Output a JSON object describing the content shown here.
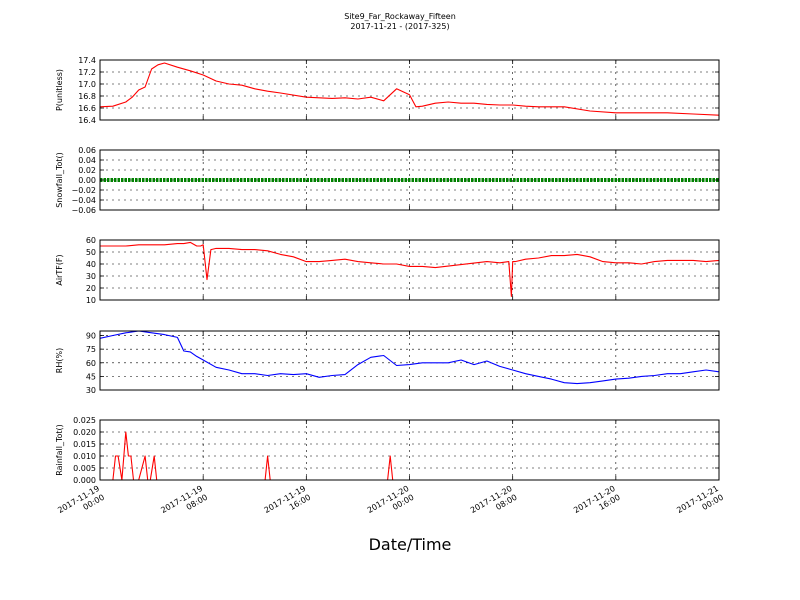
{
  "figure": {
    "title": "Site9_Far_Rockaway_Fifteen",
    "subtitle": "2017-11-21 - (2017-325)",
    "xlabel": "Date/Time"
  },
  "chart_data": [
    {
      "type": "line",
      "ylabel": "P(unitless)",
      "ylim": [
        16.4,
        17.4
      ],
      "yticks": [
        "17.4",
        "17.2",
        "17.0",
        "16.8",
        "16.6",
        "16.4"
      ],
      "ytick_values": [
        17.4,
        17.2,
        17.0,
        16.8,
        16.6,
        16.4
      ],
      "grid": true,
      "xlim": [
        0,
        48
      ],
      "x": [
        0,
        1,
        2,
        2.5,
        3,
        3.5,
        4,
        4.5,
        5,
        6,
        7,
        8,
        9,
        10,
        11,
        12,
        13,
        14,
        16,
        18,
        19,
        20,
        21,
        22,
        23,
        24,
        24.5,
        25,
        26,
        27,
        28,
        29,
        30,
        31,
        32,
        33,
        34,
        36,
        38,
        40,
        42,
        44,
        46,
        48
      ],
      "series": [
        {
          "color": "#ff0000",
          "values": [
            16.62,
            16.63,
            16.7,
            16.78,
            16.9,
            16.95,
            17.25,
            17.32,
            17.35,
            17.28,
            17.22,
            17.15,
            17.05,
            17.0,
            16.98,
            16.92,
            16.88,
            16.85,
            16.78,
            16.76,
            16.77,
            16.75,
            16.78,
            16.72,
            16.92,
            16.82,
            16.62,
            16.63,
            16.68,
            16.7,
            16.68,
            16.68,
            16.66,
            16.65,
            16.65,
            16.63,
            16.62,
            16.62,
            16.55,
            16.52,
            16.52,
            16.52,
            16.5,
            16.48
          ]
        }
      ]
    },
    {
      "type": "line",
      "ylabel": "Snowfall_Tot()",
      "ylim": [
        -0.06,
        0.06
      ],
      "yticks": [
        "0.06",
        "0.04",
        "0.02",
        "0.00",
        "−0.02",
        "−0.04",
        "−0.06"
      ],
      "ytick_values": [
        0.06,
        0.04,
        0.02,
        0.0,
        -0.02,
        -0.04,
        -0.06
      ],
      "grid": true,
      "xlim": [
        0,
        48
      ],
      "x": [
        0,
        48
      ],
      "series": [
        {
          "color": "#008000",
          "values": [
            0,
            0
          ]
        }
      ]
    },
    {
      "type": "line",
      "ylabel": "AirTF(F)",
      "ylim": [
        10,
        60
      ],
      "yticks": [
        "60",
        "50",
        "40",
        "30",
        "20",
        "10"
      ],
      "ytick_values": [
        60,
        50,
        40,
        30,
        20,
        10
      ],
      "grid": true,
      "xlim": [
        0,
        48
      ],
      "x": [
        0,
        1,
        2,
        3,
        4,
        5,
        6,
        6.5,
        7,
        7.5,
        7.8,
        8,
        8.3,
        8.6,
        9,
        10,
        11,
        12,
        13,
        14,
        15,
        16,
        17,
        18,
        19,
        20,
        21,
        22,
        23,
        24,
        25,
        26,
        30,
        31,
        31.7,
        31.9,
        32,
        32.2,
        33,
        34,
        35,
        36,
        37,
        38,
        39,
        40,
        41,
        42,
        43,
        44,
        45,
        46,
        47,
        48
      ],
      "series": [
        {
          "color": "#ff0000",
          "values": [
            55,
            55,
            55,
            56,
            56,
            56,
            57,
            57,
            58,
            55,
            55,
            56,
            27,
            52,
            53,
            53,
            52,
            52,
            51,
            48,
            46,
            42,
            42,
            43,
            44,
            42,
            41,
            40,
            40,
            38,
            38,
            37,
            42,
            41,
            42,
            13,
            42,
            42,
            44,
            45,
            47,
            47,
            48,
            46,
            42,
            41,
            41,
            40,
            42,
            43,
            43,
            43,
            42,
            43
          ]
        }
      ]
    },
    {
      "type": "line",
      "ylabel": "RH(%)",
      "ylim": [
        30,
        95
      ],
      "yticks": [
        "90",
        "75",
        "60",
        "45",
        "30"
      ],
      "ytick_values": [
        90,
        75,
        60,
        45,
        30
      ],
      "grid": true,
      "xlim": [
        0,
        48
      ],
      "x": [
        0,
        1,
        2,
        3,
        4,
        5,
        6,
        6.5,
        7,
        7.5,
        8,
        9,
        10,
        11,
        12,
        13,
        14,
        15,
        16,
        17,
        18,
        19,
        20,
        21,
        22,
        23,
        24,
        25,
        26,
        27,
        28,
        29,
        30,
        31,
        32,
        33,
        34,
        35,
        36,
        37,
        38,
        39,
        40,
        41,
        42,
        43,
        44,
        45,
        46,
        47,
        48
      ],
      "series": [
        {
          "color": "#0000ff",
          "values": [
            87,
            90,
            93,
            95,
            93,
            91,
            88,
            73,
            72,
            67,
            63,
            55,
            52,
            48,
            48,
            46,
            48,
            47,
            48,
            44,
            46,
            47,
            58,
            66,
            68,
            57,
            58,
            60,
            60,
            60,
            63,
            58,
            62,
            56,
            52,
            48,
            45,
            42,
            38,
            37,
            38,
            40,
            42,
            43,
            45,
            46,
            48,
            48,
            50,
            52,
            50
          ]
        }
      ]
    },
    {
      "type": "line",
      "ylabel": "Rainfall_Tot()",
      "ylim": [
        0,
        0.025
      ],
      "yticks": [
        "0.025",
        "0.020",
        "0.015",
        "0.010",
        "0.005",
        "0.000"
      ],
      "ytick_values": [
        0.025,
        0.02,
        0.015,
        0.01,
        0.005,
        0.0
      ],
      "grid": true,
      "xlim": [
        0,
        48
      ],
      "x": [
        0,
        1,
        1.2,
        1.4,
        1.7,
        2,
        2.2,
        2.4,
        2.6,
        3,
        3.5,
        3.7,
        3.9,
        4.2,
        4.4,
        4.6,
        12.8,
        13,
        13.2,
        22.3,
        22.5,
        22.7,
        48
      ],
      "series": [
        {
          "color": "#ff0000",
          "values": [
            0,
            0,
            0.01,
            0.01,
            0,
            0.02,
            0.01,
            0.01,
            0,
            0,
            0.01,
            0,
            0,
            0.01,
            0,
            0,
            0,
            0.01,
            0,
            0,
            0.01,
            0,
            0
          ]
        }
      ]
    }
  ],
  "x_ticks": [
    {
      "value": 0,
      "date": "2017-11-19",
      "time": "00:00"
    },
    {
      "value": 8,
      "date": "2017-11-19",
      "time": "08:00"
    },
    {
      "value": 16,
      "date": "2017-11-19",
      "time": "16:00"
    },
    {
      "value": 24,
      "date": "2017-11-20",
      "time": "00:00"
    },
    {
      "value": 32,
      "date": "2017-11-20",
      "time": "08:00"
    },
    {
      "value": 40,
      "date": "2017-11-20",
      "time": "16:00"
    },
    {
      "value": 48,
      "date": "2017-11-21",
      "time": "00:00"
    }
  ]
}
